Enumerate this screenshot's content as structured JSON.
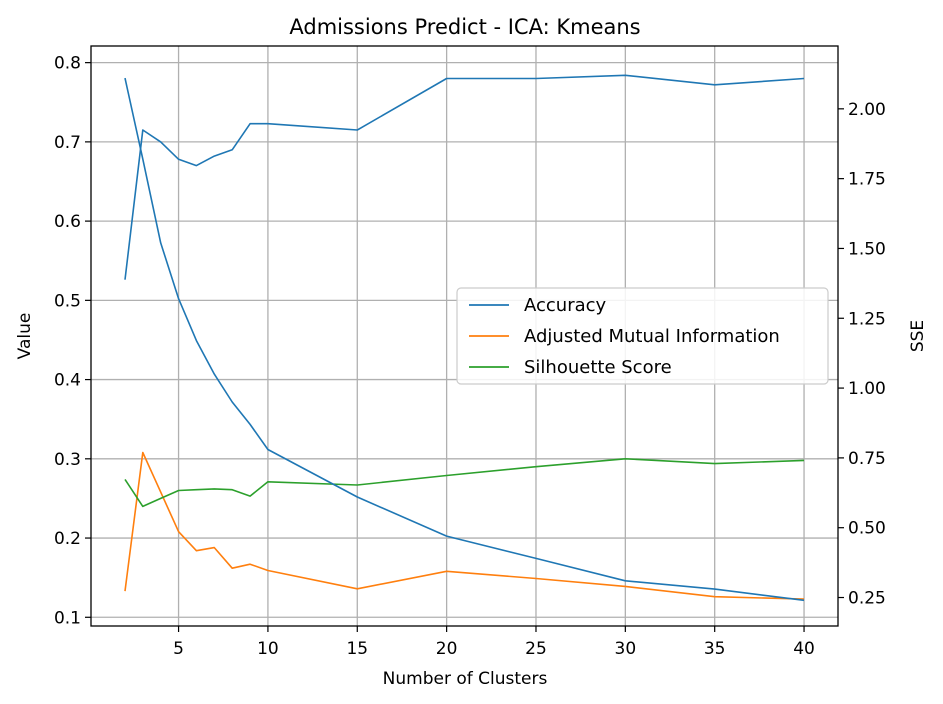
{
  "chart_data": {
    "type": "line",
    "title": "Admissions Predict - ICA: Kmeans",
    "xlabel": "Number of Clusters",
    "ylabel": "Value",
    "y2label": "SSE",
    "x": [
      2,
      3,
      4,
      5,
      6,
      7,
      8,
      9,
      10,
      15,
      20,
      25,
      30,
      35,
      40
    ],
    "xticks": [
      "5",
      "10",
      "15",
      "20",
      "25",
      "30",
      "35",
      "40"
    ],
    "xlim": [
      0.1,
      41.9
    ],
    "ylim": [
      0.089,
      0.821
    ],
    "y2lim": [
      0.148,
      2.225
    ],
    "yticks": [
      "0.1",
      "0.2",
      "0.3",
      "0.4",
      "0.5",
      "0.6",
      "0.7",
      "0.8"
    ],
    "y2ticks": [
      "0.25",
      "0.50",
      "0.75",
      "1.00",
      "1.25",
      "1.50",
      "1.75",
      "2.00"
    ],
    "grid": true,
    "legend_position": "center-right",
    "series": [
      {
        "name": "Accuracy",
        "axis": "left",
        "color": "#1f77b4",
        "values": [
          0.526,
          0.715,
          0.7,
          0.678,
          0.67,
          0.682,
          0.69,
          0.723,
          0.723,
          0.715,
          0.78,
          0.78,
          0.784,
          0.772,
          0.78
        ]
      },
      {
        "name": "Adjusted Mutual Information",
        "axis": "left",
        "color": "#ff7f0e",
        "values": [
          0.133,
          0.308,
          0.258,
          0.208,
          0.184,
          0.188,
          0.162,
          0.167,
          0.159,
          0.136,
          0.158,
          0.149,
          0.139,
          0.126,
          0.123
        ]
      },
      {
        "name": "Silhouette Score",
        "axis": "left",
        "color": "#2ca02c",
        "values": [
          0.274,
          0.24,
          0.25,
          0.26,
          0.261,
          0.262,
          0.261,
          0.253,
          0.271,
          0.267,
          0.279,
          0.29,
          0.3,
          0.294,
          0.298
        ]
      },
      {
        "name": "",
        "axis": "right",
        "color": "#1f77b4",
        "values": [
          2.11,
          1.82,
          1.52,
          1.32,
          1.17,
          1.05,
          0.95,
          0.87,
          0.78,
          0.61,
          0.47,
          0.39,
          0.31,
          0.28,
          0.24
        ]
      }
    ]
  }
}
